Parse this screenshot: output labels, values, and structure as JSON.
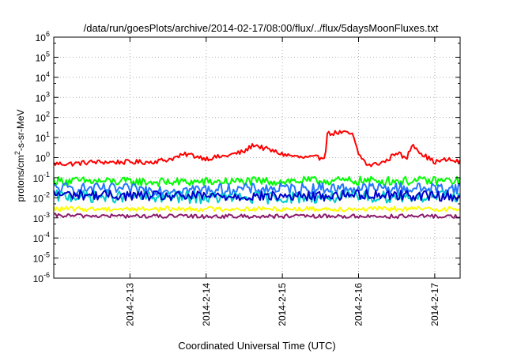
{
  "chart_data": {
    "type": "line",
    "title": "/data/run/goesPlots/archive/2014-02-17/08:00/flux/../flux/5daysMoonFluxes.txt",
    "xlabel": "Coordinated Universal Time (UTC)",
    "ylabel": {
      "prefix": "protons/cm",
      "sup": "2",
      "suffix": "-s-sr-MeV"
    },
    "yscale": "log",
    "ylim": [
      1e-06,
      1000000.0
    ],
    "xlim": [
      "2014-02-12 00:00",
      "2014-02-17 08:00"
    ],
    "grid": true,
    "legend": "none",
    "y_ticks": [
      {
        "base": "10",
        "exp": "6",
        "value": 1000000.0
      },
      {
        "base": "10",
        "exp": "5",
        "value": 100000.0
      },
      {
        "base": "10",
        "exp": "4",
        "value": 10000.0
      },
      {
        "base": "10",
        "exp": "3",
        "value": 1000.0
      },
      {
        "base": "10",
        "exp": "2",
        "value": 100.0
      },
      {
        "base": "10",
        "exp": "1",
        "value": 10.0
      },
      {
        "base": "10",
        "exp": "0",
        "value": 1.0
      },
      {
        "base": "10",
        "exp": "-1",
        "value": 0.1
      },
      {
        "base": "10",
        "exp": "-2",
        "value": 0.01
      },
      {
        "base": "10",
        "exp": "-3",
        "value": 0.001
      },
      {
        "base": "10",
        "exp": "-4",
        "value": 0.0001
      },
      {
        "base": "10",
        "exp": "-5",
        "value": 1e-05
      },
      {
        "base": "10",
        "exp": "-6",
        "value": 1e-06
      }
    ],
    "x_ticks": [
      {
        "label": "2014-2-13",
        "date": "2014-02-13 00:00"
      },
      {
        "label": "2014-2-14",
        "date": "2014-02-14 00:00"
      },
      {
        "label": "2014-2-15",
        "date": "2014-02-15 00:00"
      },
      {
        "label": "2014-2-16",
        "date": "2014-02-16 00:00"
      },
      {
        "label": "2014-2-17",
        "date": "2014-02-17 00:00"
      }
    ],
    "series": [
      {
        "color": "#ff0000",
        "noise": 0.12,
        "keys": [
          [
            "2014-02-12 00:00",
            0.5
          ],
          [
            "2014-02-12 06:00",
            0.5
          ],
          [
            "2014-02-12 12:00",
            0.6
          ],
          [
            "2014-02-12 18:00",
            0.6
          ],
          [
            "2014-02-13 00:00",
            0.6
          ],
          [
            "2014-02-13 06:00",
            0.6
          ],
          [
            "2014-02-13 12:00",
            0.8
          ],
          [
            "2014-02-13 18:00",
            1.5
          ],
          [
            "2014-02-14 00:00",
            0.9
          ],
          [
            "2014-02-14 06:00",
            1.2
          ],
          [
            "2014-02-14 12:00",
            2.0
          ],
          [
            "2014-02-14 15:00",
            4.5
          ],
          [
            "2014-02-14 18:00",
            3.0
          ],
          [
            "2014-02-15 00:00",
            1.5
          ],
          [
            "2014-02-15 06:00",
            1.0
          ],
          [
            "2014-02-15 12:00",
            1.0
          ],
          [
            "2014-02-15 13:30",
            1.2
          ],
          [
            "2014-02-15 14:00",
            15
          ],
          [
            "2014-02-15 18:00",
            18
          ],
          [
            "2014-02-15 22:00",
            15
          ],
          [
            "2014-02-16 00:00",
            1.5
          ],
          [
            "2014-02-16 03:00",
            0.4
          ],
          [
            "2014-02-16 06:00",
            0.5
          ],
          [
            "2014-02-16 09:00",
            0.7
          ],
          [
            "2014-02-16 12:00",
            2.0
          ],
          [
            "2014-02-16 15:00",
            0.8
          ],
          [
            "2014-02-16 17:00",
            5.0
          ],
          [
            "2014-02-16 20:00",
            1.5
          ],
          [
            "2014-02-17 00:00",
            0.6
          ],
          [
            "2014-02-17 04:00",
            0.8
          ],
          [
            "2014-02-17 08:00",
            0.6
          ]
        ]
      },
      {
        "color": "#00ff00",
        "noise": 0.22,
        "keys": [
          [
            "2014-02-12 00:00",
            0.07
          ],
          [
            "2014-02-13 12:00",
            0.06
          ],
          [
            "2014-02-15 12:00",
            0.07
          ],
          [
            "2014-02-16 00:00",
            0.07
          ],
          [
            "2014-02-17 08:00",
            0.07
          ]
        ]
      },
      {
        "color": "#2277ff",
        "noise": 0.28,
        "keys": [
          [
            "2014-02-12 00:00",
            0.03
          ],
          [
            "2014-02-13 12:00",
            0.025
          ],
          [
            "2014-02-15 12:00",
            0.03
          ],
          [
            "2014-02-17 08:00",
            0.03
          ]
        ]
      },
      {
        "color": "#00cccc",
        "noise": 0.3,
        "keys": [
          [
            "2014-02-12 00:00",
            0.012
          ],
          [
            "2014-02-14 12:00",
            0.01
          ],
          [
            "2014-02-17 08:00",
            0.012
          ]
        ]
      },
      {
        "color": "#0000cc",
        "noise": 0.25,
        "keys": [
          [
            "2014-02-12 00:00",
            0.015
          ],
          [
            "2014-02-13 12:00",
            0.012
          ],
          [
            "2014-02-15 12:00",
            0.012
          ],
          [
            "2014-02-16 00:00",
            0.015
          ],
          [
            "2014-02-17 08:00",
            0.012
          ]
        ]
      },
      {
        "color": "#ffff00",
        "noise": 0.12,
        "keys": [
          [
            "2014-02-12 00:00",
            0.0028
          ],
          [
            "2014-02-17 08:00",
            0.0028
          ]
        ]
      },
      {
        "color": "#8b1a6b",
        "noise": 0.1,
        "keys": [
          [
            "2014-02-12 00:00",
            0.0013
          ],
          [
            "2014-02-13 12:00",
            0.0012
          ],
          [
            "2014-02-17 08:00",
            0.0012
          ]
        ]
      }
    ]
  }
}
